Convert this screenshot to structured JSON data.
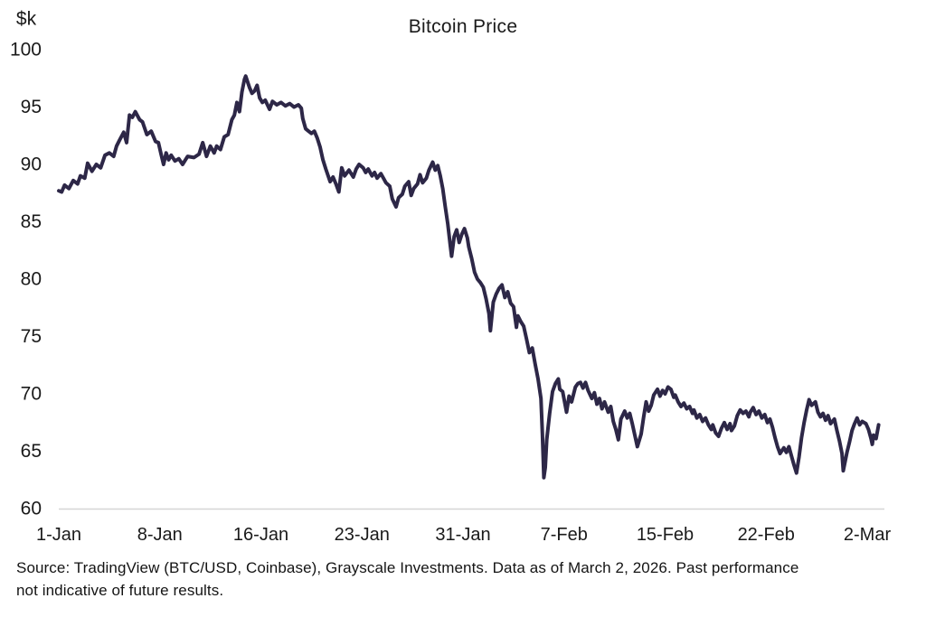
{
  "title": "Bitcoin Price",
  "y_axis_unit": "$k",
  "source_note": {
    "lines": [
      "Source: TradingView (BTC/USD, Coinbase), Grayscale Investments. Data as of March 2, 2026. Past performance",
      "not indicative of future results."
    ]
  },
  "colors": {
    "line": "#2d2747",
    "axis_line": "#d6d6d6",
    "text": "#1a1a1a"
  },
  "chart_data": {
    "type": "line",
    "title": "Bitcoin Price",
    "ylabel": "$k",
    "xlabel": "",
    "ylim": [
      60,
      100
    ],
    "grid": false,
    "legend": false,
    "y_ticks": [
      100,
      95,
      90,
      85,
      80,
      75,
      70,
      65,
      60
    ],
    "x_tick_labels": [
      "1-Jan",
      "8-Jan",
      "16-Jan",
      "23-Jan",
      "31-Jan",
      "7-Feb",
      "15-Feb",
      "22-Feb",
      "2-Mar"
    ],
    "x_tick_days": [
      0,
      7,
      15,
      22,
      30,
      37,
      45,
      52,
      60
    ],
    "x_unit": "day offset from Jan 1, 2026",
    "series": [
      {
        "name": "BTC/USD price (thousand USD)",
        "points": [
          [
            0,
            87.7
          ],
          [
            0.2,
            87.6
          ],
          [
            0.4,
            88.2
          ],
          [
            0.7,
            87.9
          ],
          [
            1.0,
            88.6
          ],
          [
            1.3,
            88.3
          ],
          [
            1.5,
            89.0
          ],
          [
            1.8,
            88.8
          ],
          [
            2.0,
            90.1
          ],
          [
            2.3,
            89.4
          ],
          [
            2.6,
            90.0
          ],
          [
            2.9,
            89.7
          ],
          [
            3.2,
            90.8
          ],
          [
            3.5,
            91.0
          ],
          [
            3.8,
            90.7
          ],
          [
            4.0,
            91.6
          ],
          [
            4.2,
            92.1
          ],
          [
            4.5,
            92.8
          ],
          [
            4.7,
            91.9
          ],
          [
            4.9,
            94.3
          ],
          [
            5.1,
            94.1
          ],
          [
            5.3,
            94.6
          ],
          [
            5.6,
            93.9
          ],
          [
            5.8,
            93.7
          ],
          [
            6.1,
            92.6
          ],
          [
            6.4,
            92.9
          ],
          [
            6.7,
            92.0
          ],
          [
            6.9,
            91.9
          ],
          [
            7.1,
            90.9
          ],
          [
            7.3,
            90.0
          ],
          [
            7.5,
            91.0
          ],
          [
            7.7,
            90.4
          ],
          [
            7.9,
            90.8
          ],
          [
            8.2,
            90.3
          ],
          [
            8.5,
            90.5
          ],
          [
            8.8,
            90.0
          ],
          [
            9.2,
            90.7
          ],
          [
            9.7,
            90.6
          ],
          [
            10.1,
            90.9
          ],
          [
            10.4,
            91.9
          ],
          [
            10.7,
            90.7
          ],
          [
            11.0,
            91.6
          ],
          [
            11.3,
            91.0
          ],
          [
            11.5,
            91.6
          ],
          [
            11.8,
            91.3
          ],
          [
            12.1,
            92.4
          ],
          [
            12.4,
            92.6
          ],
          [
            12.7,
            93.9
          ],
          [
            12.9,
            94.3
          ],
          [
            13.1,
            95.4
          ],
          [
            13.3,
            94.6
          ],
          [
            13.5,
            96.3
          ],
          [
            13.7,
            97.4
          ],
          [
            13.8,
            97.7
          ],
          [
            14.1,
            96.7
          ],
          [
            14.3,
            96.2
          ],
          [
            14.5,
            96.4
          ],
          [
            14.7,
            96.9
          ],
          [
            14.9,
            95.8
          ],
          [
            15.1,
            95.4
          ],
          [
            15.3,
            95.6
          ],
          [
            15.6,
            94.8
          ],
          [
            15.8,
            95.5
          ],
          [
            16.1,
            95.2
          ],
          [
            16.4,
            95.4
          ],
          [
            16.7,
            95.1
          ],
          [
            17.0,
            95.3
          ],
          [
            17.3,
            95.0
          ],
          [
            17.6,
            95.2
          ],
          [
            17.8,
            94.9
          ],
          [
            17.9,
            94.0
          ],
          [
            18.1,
            93.1
          ],
          [
            18.3,
            92.9
          ],
          [
            18.5,
            92.7
          ],
          [
            18.7,
            92.9
          ],
          [
            18.9,
            92.3
          ],
          [
            19.1,
            91.5
          ],
          [
            19.3,
            90.4
          ],
          [
            19.5,
            89.6
          ],
          [
            19.8,
            88.5
          ],
          [
            20.0,
            88.9
          ],
          [
            20.2,
            88.3
          ],
          [
            20.4,
            87.6
          ],
          [
            20.6,
            89.7
          ],
          [
            20.8,
            89.0
          ],
          [
            21.1,
            89.5
          ],
          [
            21.4,
            88.9
          ],
          [
            21.6,
            89.6
          ],
          [
            21.8,
            90.0
          ],
          [
            22.1,
            89.7
          ],
          [
            22.3,
            89.3
          ],
          [
            22.5,
            89.6
          ],
          [
            22.8,
            89.0
          ],
          [
            23.0,
            89.3
          ],
          [
            23.2,
            88.8
          ],
          [
            23.5,
            89.2
          ],
          [
            23.7,
            88.8
          ],
          [
            23.9,
            88.4
          ],
          [
            24.2,
            88.1
          ],
          [
            24.4,
            87.0
          ],
          [
            24.7,
            86.3
          ],
          [
            24.9,
            87.1
          ],
          [
            25.2,
            87.4
          ],
          [
            25.4,
            88.1
          ],
          [
            25.7,
            88.5
          ],
          [
            25.9,
            87.3
          ],
          [
            26.1,
            87.9
          ],
          [
            26.4,
            88.3
          ],
          [
            26.6,
            89.1
          ],
          [
            26.8,
            88.4
          ],
          [
            27.1,
            88.8
          ],
          [
            27.3,
            89.5
          ],
          [
            27.6,
            90.2
          ],
          [
            27.8,
            89.5
          ],
          [
            28.0,
            89.9
          ],
          [
            28.2,
            89.0
          ],
          [
            28.4,
            87.9
          ],
          [
            28.6,
            86.3
          ],
          [
            28.8,
            84.8
          ],
          [
            29.0,
            82.9
          ],
          [
            29.1,
            82.0
          ],
          [
            29.3,
            83.7
          ],
          [
            29.5,
            84.3
          ],
          [
            29.7,
            83.2
          ],
          [
            29.9,
            83.9
          ],
          [
            30.1,
            84.4
          ],
          [
            30.3,
            83.6
          ],
          [
            30.4,
            82.8
          ],
          [
            30.6,
            81.8
          ],
          [
            30.8,
            80.6
          ],
          [
            31.0,
            80.0
          ],
          [
            31.2,
            79.7
          ],
          [
            31.4,
            79.3
          ],
          [
            31.6,
            78.3
          ],
          [
            31.8,
            77.0
          ],
          [
            31.9,
            75.5
          ],
          [
            32.1,
            78.0
          ],
          [
            32.3,
            78.7
          ],
          [
            32.5,
            79.2
          ],
          [
            32.7,
            79.5
          ],
          [
            32.9,
            78.4
          ],
          [
            33.1,
            78.9
          ],
          [
            33.3,
            77.9
          ],
          [
            33.5,
            77.6
          ],
          [
            33.7,
            75.8
          ],
          [
            33.8,
            76.8
          ],
          [
            34.0,
            76.3
          ],
          [
            34.2,
            75.9
          ],
          [
            34.4,
            74.8
          ],
          [
            34.6,
            73.6
          ],
          [
            34.8,
            74.0
          ],
          [
            35.0,
            72.6
          ],
          [
            35.2,
            71.3
          ],
          [
            35.4,
            69.6
          ],
          [
            35.5,
            66.5
          ],
          [
            35.6,
            62.7
          ],
          [
            35.7,
            63.6
          ],
          [
            35.8,
            66.0
          ],
          [
            36.0,
            68.3
          ],
          [
            36.2,
            70.2
          ],
          [
            36.4,
            70.9
          ],
          [
            36.6,
            71.3
          ],
          [
            36.7,
            70.4
          ],
          [
            36.9,
            70.2
          ],
          [
            37.2,
            68.4
          ],
          [
            37.4,
            69.8
          ],
          [
            37.6,
            69.3
          ],
          [
            37.9,
            70.6
          ],
          [
            38.1,
            70.9
          ],
          [
            38.3,
            71.0
          ],
          [
            38.5,
            70.5
          ],
          [
            38.7,
            71.0
          ],
          [
            38.9,
            70.3
          ],
          [
            39.2,
            69.6
          ],
          [
            39.4,
            70.1
          ],
          [
            39.6,
            69.1
          ],
          [
            39.8,
            69.6
          ],
          [
            40.0,
            68.7
          ],
          [
            40.2,
            69.3
          ],
          [
            40.5,
            68.4
          ],
          [
            40.7,
            68.9
          ],
          [
            40.9,
            67.6
          ],
          [
            41.1,
            66.9
          ],
          [
            41.3,
            66.0
          ],
          [
            41.5,
            67.8
          ],
          [
            41.8,
            68.5
          ],
          [
            42.0,
            67.9
          ],
          [
            42.2,
            68.3
          ],
          [
            42.4,
            67.4
          ],
          [
            42.6,
            66.4
          ],
          [
            42.8,
            65.4
          ],
          [
            43.1,
            66.5
          ],
          [
            43.3,
            68.0
          ],
          [
            43.5,
            69.3
          ],
          [
            43.7,
            68.5
          ],
          [
            43.9,
            69.0
          ],
          [
            44.1,
            69.9
          ],
          [
            44.4,
            70.4
          ],
          [
            44.6,
            69.8
          ],
          [
            44.8,
            70.3
          ],
          [
            45.0,
            70.0
          ],
          [
            45.2,
            70.6
          ],
          [
            45.4,
            70.4
          ],
          [
            45.6,
            69.7
          ],
          [
            45.7,
            69.9
          ],
          [
            45.9,
            69.3
          ],
          [
            46.1,
            68.9
          ],
          [
            46.3,
            69.2
          ],
          [
            46.5,
            68.7
          ],
          [
            46.7,
            68.9
          ],
          [
            46.9,
            68.3
          ],
          [
            47.0,
            68.6
          ],
          [
            47.2,
            67.9
          ],
          [
            47.4,
            68.2
          ],
          [
            47.6,
            67.6
          ],
          [
            47.8,
            67.9
          ],
          [
            48.0,
            67.3
          ],
          [
            48.2,
            66.9
          ],
          [
            48.3,
            67.3
          ],
          [
            48.5,
            66.6
          ],
          [
            48.7,
            66.3
          ],
          [
            48.9,
            67.0
          ],
          [
            49.1,
            67.5
          ],
          [
            49.3,
            66.9
          ],
          [
            49.5,
            67.4
          ],
          [
            49.6,
            66.8
          ],
          [
            49.8,
            67.2
          ],
          [
            50.0,
            68.1
          ],
          [
            50.2,
            68.6
          ],
          [
            50.4,
            68.3
          ],
          [
            50.6,
            68.5
          ],
          [
            50.8,
            68.0
          ],
          [
            50.9,
            68.4
          ],
          [
            51.1,
            68.8
          ],
          [
            51.3,
            68.2
          ],
          [
            51.5,
            68.5
          ],
          [
            51.7,
            67.9
          ],
          [
            51.9,
            68.2
          ],
          [
            52.1,
            67.5
          ],
          [
            52.3,
            67.8
          ],
          [
            52.5,
            67.1
          ],
          [
            52.7,
            66.2
          ],
          [
            52.9,
            65.4
          ],
          [
            53.1,
            64.8
          ],
          [
            53.4,
            65.3
          ],
          [
            53.6,
            64.9
          ],
          [
            53.8,
            65.4
          ],
          [
            54.0,
            64.6
          ],
          [
            54.2,
            63.8
          ],
          [
            54.4,
            63.1
          ],
          [
            54.6,
            64.5
          ],
          [
            54.8,
            66.2
          ],
          [
            55.0,
            67.5
          ],
          [
            55.2,
            68.6
          ],
          [
            55.4,
            69.5
          ],
          [
            55.6,
            69.0
          ],
          [
            55.9,
            69.3
          ],
          [
            56.1,
            68.4
          ],
          [
            56.3,
            68.0
          ],
          [
            56.5,
            68.3
          ],
          [
            56.7,
            67.7
          ],
          [
            56.9,
            68.1
          ],
          [
            57.1,
            67.4
          ],
          [
            57.4,
            67.8
          ],
          [
            57.6,
            66.8
          ],
          [
            57.8,
            65.9
          ],
          [
            58.0,
            64.8
          ],
          [
            58.1,
            63.3
          ],
          [
            58.4,
            64.9
          ],
          [
            58.6,
            65.8
          ],
          [
            58.8,
            66.8
          ],
          [
            59.0,
            67.4
          ],
          [
            59.2,
            67.9
          ],
          [
            59.4,
            67.3
          ],
          [
            59.6,
            67.6
          ],
          [
            59.9,
            67.4
          ],
          [
            60.1,
            66.9
          ],
          [
            60.3,
            66.1
          ],
          [
            60.4,
            65.6
          ],
          [
            60.5,
            66.4
          ],
          [
            60.7,
            66.1
          ],
          [
            60.9,
            67.3
          ]
        ]
      }
    ]
  }
}
